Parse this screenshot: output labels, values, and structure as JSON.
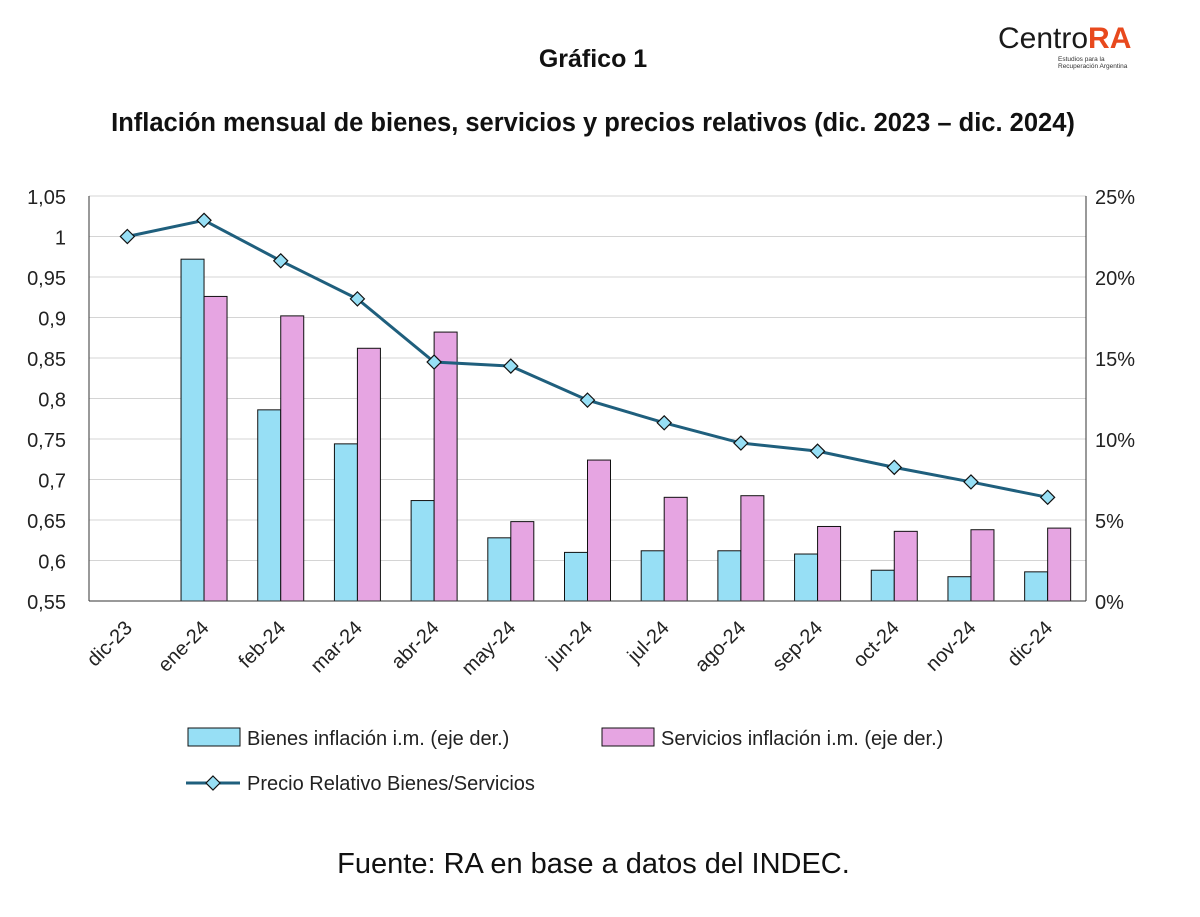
{
  "logo": {
    "text_main": "Centro",
    "text_accent": "RA",
    "subtitle_line1": "Estudios para la",
    "subtitle_line2": "Recuperación Argentina",
    "accent_color": "#e8491d"
  },
  "footer": {
    "source": "Fuente: RA en base a datos del INDEC."
  },
  "chart_data": {
    "type": "bar",
    "title": "Gráfico 1",
    "subtitle": "Inflación mensual de bienes, servicios y precios relativos (dic. 2023 – dic. 2024)",
    "categories": [
      "dic-23",
      "ene-24",
      "feb-24",
      "mar-24",
      "abr-24",
      "may-24",
      "jun-24",
      "jul-24",
      "ago-24",
      "sep-24",
      "oct-24",
      "nov-24",
      "dic-24"
    ],
    "left_axis": {
      "ticks": [
        "1,05",
        "1",
        "0,95",
        "0,9",
        "0,85",
        "0,8",
        "0,75",
        "0,7",
        "0,65",
        "0,6",
        "0,55"
      ],
      "ylim": [
        0.55,
        1.05
      ]
    },
    "right_axis": {
      "ticks": [
        "25%",
        "20%",
        "15%",
        "10%",
        "5%",
        "0%"
      ],
      "ylim": [
        0,
        25
      ]
    },
    "grid": true,
    "legend_position": "bottom",
    "series": [
      {
        "name": "Bienes inflación i.m. (eje der.)",
        "type": "bar",
        "axis": "right",
        "color": "#97dff5",
        "values": [
          null,
          21.1,
          11.8,
          9.7,
          6.2,
          3.9,
          3.0,
          3.1,
          3.1,
          2.9,
          1.9,
          1.5,
          1.8
        ]
      },
      {
        "name": "Servicios inflación i.m. (eje der.)",
        "type": "bar",
        "axis": "right",
        "color": "#e6a5e2",
        "values": [
          null,
          18.8,
          17.6,
          15.6,
          16.6,
          4.9,
          8.7,
          6.4,
          6.5,
          4.6,
          4.3,
          4.4,
          4.5
        ]
      },
      {
        "name": "Precio Relativo Bienes/Servicios",
        "type": "line",
        "axis": "left",
        "color": "#1f5f7d",
        "marker_color": "#97dff5",
        "values": [
          1.0,
          1.02,
          0.97,
          0.923,
          0.845,
          0.84,
          0.798,
          0.77,
          0.745,
          0.735,
          0.715,
          0.697,
          0.678
        ]
      }
    ]
  }
}
